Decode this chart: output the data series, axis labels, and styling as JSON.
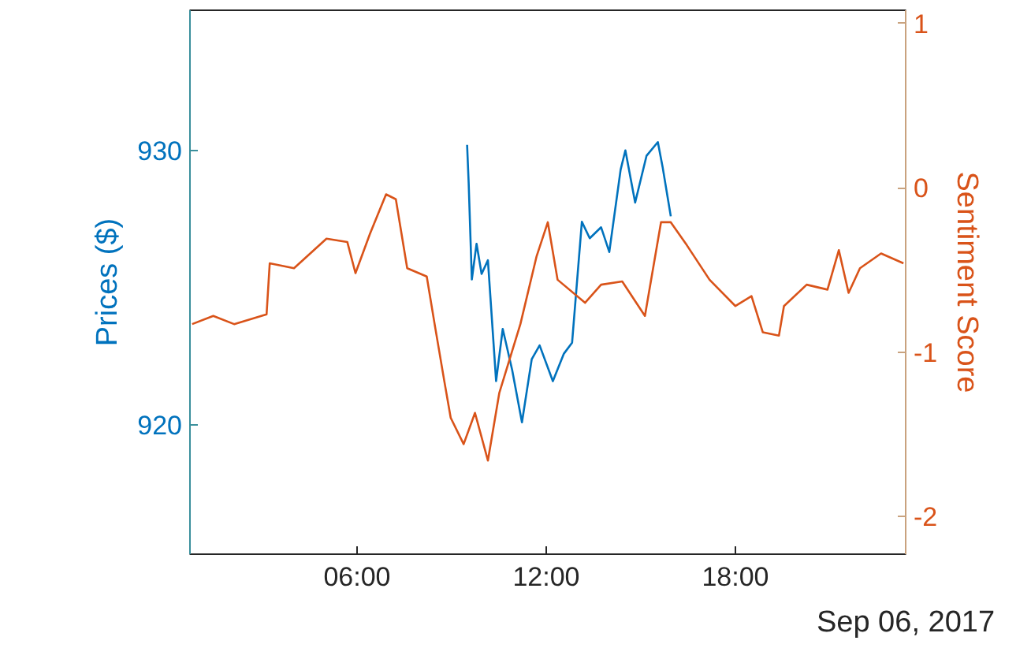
{
  "chart_data": {
    "type": "line",
    "xlabel": "Sep 06, 2017",
    "ylabel": "Prices ($)",
    "y2label": "Sentiment Score",
    "xlim": [
      0.7,
      23.4
    ],
    "xticks": [
      {
        "value": 6,
        "label": "06:00"
      },
      {
        "value": 12,
        "label": "12:00"
      },
      {
        "value": 18,
        "label": "18:00"
      }
    ],
    "ylim": [
      915.3,
      935.1
    ],
    "yticks": [
      920,
      930
    ],
    "y2lim": [
      -2.23,
      1.08
    ],
    "y2ticks": [
      -2,
      -1,
      0,
      1
    ],
    "grid": false,
    "marker": "none",
    "line_style": "solid",
    "series": [
      {
        "color": "#0072bd",
        "x": [
          9.49,
          9.54,
          9.64,
          9.79,
          9.95,
          10.15,
          10.41,
          10.62,
          10.92,
          11.23,
          11.54,
          11.79,
          12.21,
          12.56,
          12.82,
          13.13,
          13.38,
          13.74,
          14.0,
          14.36,
          14.51,
          14.82,
          15.18,
          15.54,
          15.69,
          15.95
        ],
        "values": [
          930.2,
          928.8,
          925.3,
          926.6,
          925.5,
          926.0,
          921.6,
          923.5,
          922.0,
          920.1,
          922.4,
          922.9,
          921.6,
          922.6,
          923.0,
          927.4,
          926.8,
          927.2,
          926.3,
          929.3,
          930.0,
          928.1,
          929.8,
          930.3,
          929.4,
          927.6
        ]
      },
      {
        "color": "#d95319",
        "axis": "y2",
        "x": [
          0.77,
          1.44,
          2.1,
          3.13,
          3.23,
          4.0,
          5.03,
          5.69,
          5.95,
          6.41,
          6.92,
          7.23,
          7.59,
          8.21,
          8.46,
          8.77,
          8.97,
          9.38,
          9.74,
          10.15,
          10.51,
          11.18,
          11.69,
          12.05,
          12.36,
          13.23,
          13.74,
          14.41,
          15.13,
          15.64,
          15.95,
          16.46,
          17.18,
          18.0,
          18.51,
          18.87,
          19.38,
          19.54,
          20.26,
          20.92,
          21.28,
          21.59,
          21.95,
          22.62,
          23.33
        ],
        "values": [
          -0.83,
          -0.78,
          -0.83,
          -0.77,
          -0.46,
          -0.49,
          -0.31,
          -0.33,
          -0.52,
          -0.28,
          -0.04,
          -0.07,
          -0.49,
          -0.54,
          -0.83,
          -1.18,
          -1.4,
          -1.56,
          -1.37,
          -1.66,
          -1.25,
          -0.83,
          -0.42,
          -0.21,
          -0.56,
          -0.7,
          -0.59,
          -0.57,
          -0.78,
          -0.21,
          -0.21,
          -0.35,
          -0.56,
          -0.72,
          -0.66,
          -0.88,
          -0.9,
          -0.72,
          -0.59,
          -0.62,
          -0.38,
          -0.64,
          -0.49,
          -0.4,
          -0.46
        ]
      }
    ]
  }
}
